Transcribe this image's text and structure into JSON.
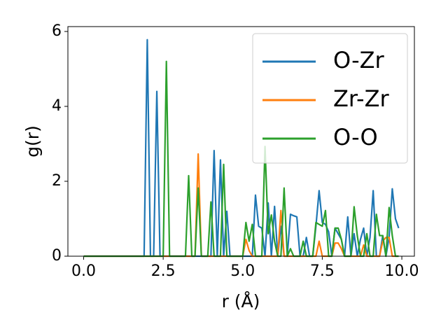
{
  "chart_data": {
    "type": "line",
    "xlabel": "r (Å)",
    "ylabel": "g(r)",
    "x": [
      0.0,
      0.1,
      0.2,
      0.3,
      0.4,
      0.5,
      0.6,
      0.7,
      0.8,
      0.9,
      1.0,
      1.1,
      1.2,
      1.3,
      1.4,
      1.5,
      1.6,
      1.7,
      1.8,
      1.9,
      2.0,
      2.1,
      2.2,
      2.3,
      2.4,
      2.5,
      2.6,
      2.7,
      2.8,
      2.9,
      3.0,
      3.1,
      3.2,
      3.3,
      3.4,
      3.5,
      3.6,
      3.7,
      3.8,
      3.9,
      4.0,
      4.1,
      4.2,
      4.3,
      4.4,
      4.5,
      4.6,
      4.7,
      4.8,
      4.9,
      5.0,
      5.1,
      5.2,
      5.3,
      5.4,
      5.5,
      5.6,
      5.7,
      5.8,
      5.9,
      6.0,
      6.1,
      6.2,
      6.3,
      6.4,
      6.5,
      6.6,
      6.7,
      6.8,
      6.9,
      7.0,
      7.1,
      7.2,
      7.3,
      7.4,
      7.5,
      7.6,
      7.7,
      7.8,
      7.9,
      8.0,
      8.1,
      8.2,
      8.3,
      8.4,
      8.5,
      8.6,
      8.7,
      8.8,
      8.9,
      9.0,
      9.1,
      9.2,
      9.3,
      9.4,
      9.5,
      9.6,
      9.7,
      9.8,
      9.9
    ],
    "series": [
      {
        "name": "O-Zr",
        "color": "#1f77b4",
        "values": [
          0,
          0,
          0,
          0,
          0,
          0,
          0,
          0,
          0,
          0,
          0,
          0,
          0,
          0,
          0,
          0,
          0,
          0,
          0,
          0,
          5.78,
          0,
          0,
          4.4,
          0,
          0,
          0,
          0,
          0,
          0,
          0,
          0,
          0,
          0,
          0,
          0,
          0,
          0,
          0,
          0,
          0,
          2.82,
          0,
          2.57,
          0,
          1.2,
          0,
          0,
          0,
          0,
          0,
          0,
          0,
          0,
          1.63,
          0.8,
          0.75,
          0,
          1.42,
          0,
          1.33,
          0,
          0.8,
          0,
          0,
          1.12,
          1.08,
          1.05,
          0,
          0,
          0.5,
          0,
          0,
          0.8,
          1.75,
          0.9,
          0.85,
          0.65,
          0,
          0.75,
          0.6,
          0.45,
          0,
          1.05,
          0,
          0.6,
          0,
          0.45,
          0.75,
          0,
          0.5,
          1.75,
          0,
          0,
          0.55,
          0,
          0.5,
          1.8,
          1.0,
          0.75
        ]
      },
      {
        "name": "Zr-Zr",
        "color": "#ff7f0e",
        "values": [
          0,
          0,
          0,
          0,
          0,
          0,
          0,
          0,
          0,
          0,
          0,
          0,
          0,
          0,
          0,
          0,
          0,
          0,
          0,
          0,
          0,
          0,
          0,
          0,
          0,
          0,
          0,
          0,
          0,
          0,
          0,
          0,
          0,
          0,
          0,
          0,
          2.73,
          0,
          0,
          0,
          0,
          0,
          0,
          0,
          0,
          0,
          0,
          0,
          0,
          0,
          0,
          0.45,
          0.15,
          0,
          0,
          0,
          0,
          0,
          0,
          0,
          0,
          0,
          1.22,
          0,
          0,
          0,
          0,
          0,
          0,
          0,
          0,
          0,
          0,
          0,
          0.4,
          0,
          0,
          0,
          0,
          0.35,
          0.35,
          0.2,
          0,
          0,
          0,
          0,
          0,
          0,
          0.3,
          0,
          0,
          0,
          0,
          0,
          0.4,
          0.5,
          0.5,
          0,
          0,
          0
        ]
      },
      {
        "name": "O-O",
        "color": "#2ca02c",
        "values": [
          0,
          0,
          0,
          0,
          0,
          0,
          0,
          0,
          0,
          0,
          0,
          0,
          0,
          0,
          0,
          0,
          0,
          0,
          0,
          0,
          0,
          0,
          0,
          0,
          0,
          0,
          5.2,
          0,
          0,
          0,
          0,
          0,
          0,
          2.15,
          0,
          0,
          1.82,
          0,
          0,
          0,
          1.45,
          0,
          0,
          0,
          2.45,
          0,
          0,
          0,
          0,
          0,
          0,
          0.9,
          0.4,
          0.85,
          0,
          0,
          0,
          2.93,
          0.6,
          1.1,
          0.4,
          0,
          0,
          1.82,
          0,
          0.2,
          0,
          0,
          0,
          0.4,
          0,
          0,
          0,
          0.9,
          0.85,
          0.8,
          1.22,
          0,
          0,
          0.75,
          0.75,
          0.45,
          0,
          0,
          0,
          1.32,
          0.55,
          0,
          0,
          0.6,
          0,
          0,
          1.12,
          0.55,
          0.55,
          0,
          1.3,
          0.55,
          0,
          0
        ]
      }
    ],
    "xlim": [
      -0.495,
      10.395
    ],
    "ylim": [
      0,
      6.13
    ],
    "xticks": [
      {
        "value": 0,
        "label": "0.0"
      },
      {
        "value": 2.5,
        "label": "2.5"
      },
      {
        "value": 5,
        "label": "5.0"
      },
      {
        "value": 7.5,
        "label": "7.5"
      },
      {
        "value": 10,
        "label": "10.0"
      }
    ],
    "yticks": [
      0,
      2,
      4,
      6
    ],
    "legend": "upper right"
  }
}
